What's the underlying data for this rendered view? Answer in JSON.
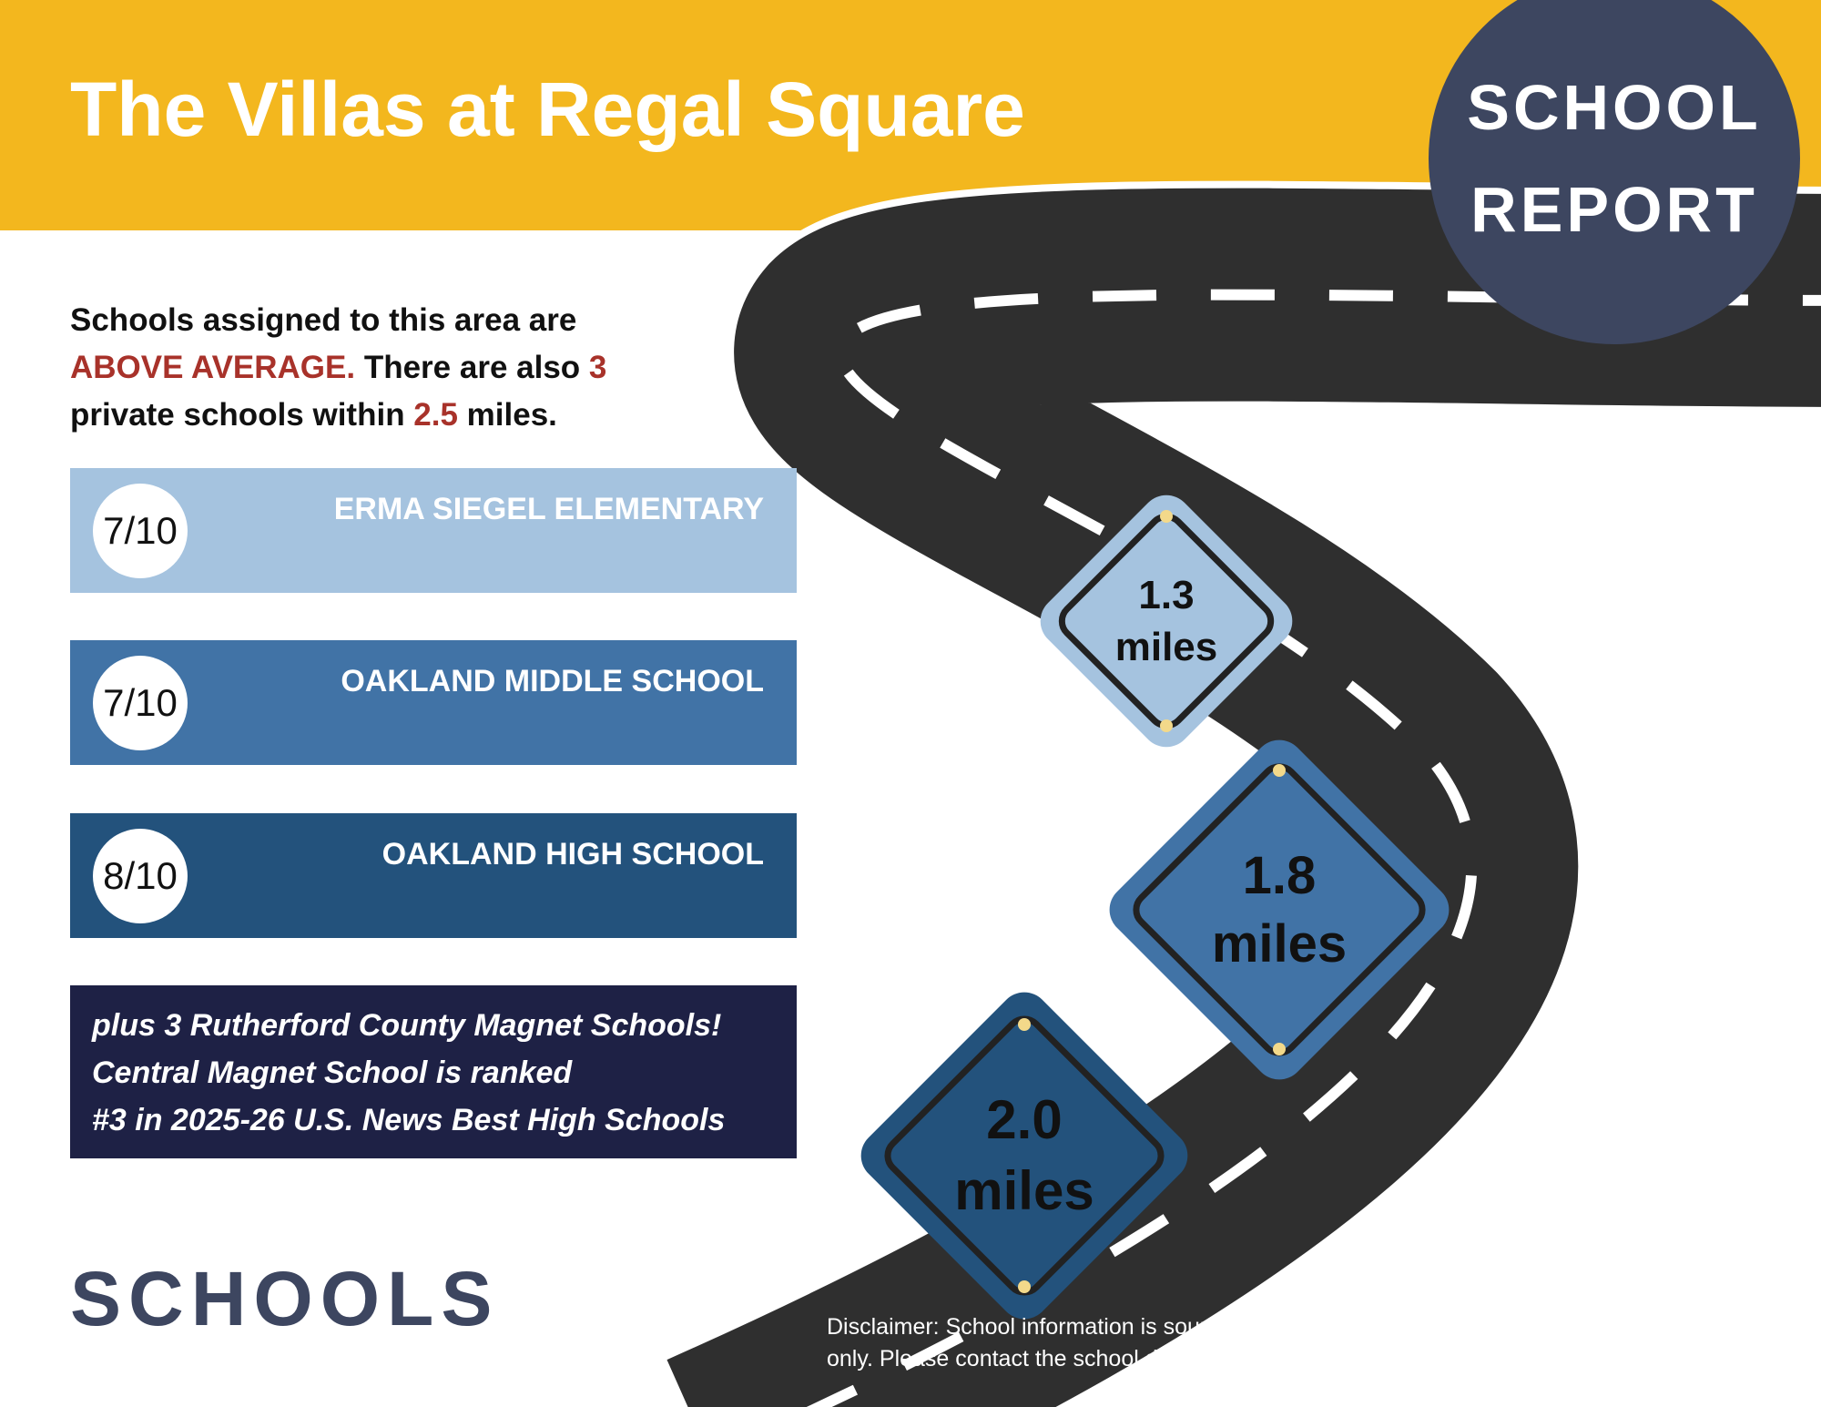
{
  "header": {
    "title": "The Villas at Regal Square",
    "badge_line1": "SCHOOL",
    "badge_line2": "REPORT"
  },
  "intro": {
    "part1": "Schools assigned to this area are ",
    "rating_word": "ABOVE AVERAGE.",
    "part2": " There are also ",
    "private_count": "3",
    "part3": " private schools within ",
    "radius": "2.5",
    "part4": " miles."
  },
  "schools": [
    {
      "name": "ERMA SIEGEL ELEMENTARY",
      "score": "7/10",
      "distance": "1.3",
      "unit": "miles",
      "color": "#a5c3df"
    },
    {
      "name": "OAKLAND MIDDLE SCHOOL",
      "score": "7/10",
      "distance": "1.8",
      "unit": "miles",
      "color": "#4173a6"
    },
    {
      "name": "OAKLAND HIGH SCHOOL",
      "score": "8/10",
      "distance": "2.0",
      "unit": "miles",
      "color": "#23527c"
    }
  ],
  "magnet": {
    "line1": "plus 3 Rutherford County Magnet Schools!",
    "line2": "Central Magnet School is ranked",
    "line3": "#3 in 2025-26 U.S. News Best High Schools"
  },
  "footer": {
    "section_title": "SCHOOLS",
    "disclaimer": "Disclaimer: School information is sourced from GreatSchools.org and is provided for reference only. Please contact the school district directly to confirm enrollment eligibility."
  },
  "colors": {
    "header_yellow": "#f3b71e",
    "badge_navy": "#3d4660",
    "accent_red": "#a8322a",
    "magnet_navy": "#1e2145",
    "road": "#2f2f2f"
  }
}
